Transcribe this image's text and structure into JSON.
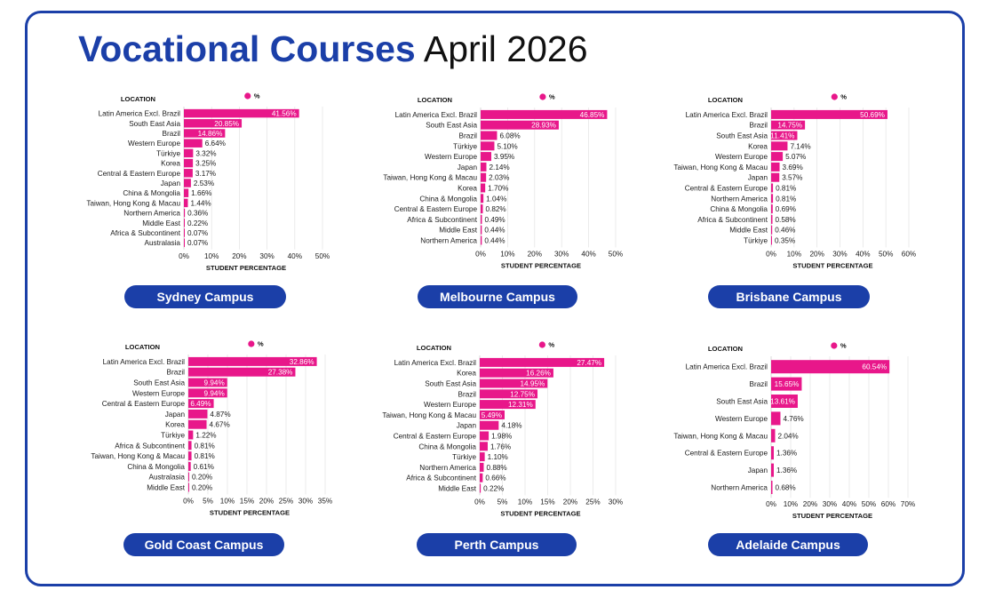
{
  "page": {
    "title_bold": "Vocational Courses",
    "title_rest": "April 2026",
    "colors": {
      "accent": "#1b3fa8",
      "bar": "#e8178a",
      "text": "#1a1a1a"
    }
  },
  "chart_data": [
    {
      "type": "bar",
      "orientation": "horizontal",
      "campus": "Sydney Campus",
      "ylabel": "LOCATION",
      "xlabel": "STUDENT PERCENTAGE",
      "legend": "%",
      "legend_position": "top",
      "xlim": [
        0,
        50
      ],
      "xticks": [
        "0%",
        "10%",
        "20%",
        "30%",
        "40%",
        "50%"
      ],
      "categories": [
        "Latin America Excl. Brazil",
        "South East Asia",
        "Brazil",
        "Western Europe",
        "Türkiye",
        "Korea",
        "Central & Eastern Europe",
        "Japan",
        "China & Mongolia",
        "Taiwan, Hong Kong & Macau",
        "Northern America",
        "Middle East",
        "Africa & Subcontinent",
        "Australasia"
      ],
      "values": [
        41.56,
        20.85,
        14.86,
        6.64,
        3.32,
        3.25,
        3.17,
        2.53,
        1.66,
        1.44,
        0.36,
        0.22,
        0.07,
        0.07
      ],
      "labels": [
        "41.56%",
        "20.85%",
        "14.86%",
        "6.64%",
        "3.32%",
        "3.25%",
        "3.17%",
        "2.53%",
        "1.66%",
        "1.44%",
        "0.36%",
        "0.22%",
        "0.07%",
        "0.07%"
      ]
    },
    {
      "type": "bar",
      "orientation": "horizontal",
      "campus": "Melbourne Campus",
      "ylabel": "LOCATION",
      "xlabel": "STUDENT PERCENTAGE",
      "legend": "%",
      "legend_position": "top",
      "xlim": [
        0,
        50
      ],
      "xticks": [
        "0%",
        "10%",
        "20%",
        "30%",
        "40%",
        "50%"
      ],
      "categories": [
        "Latin America Excl. Brazil",
        "South East Asia",
        "Brazil",
        "Türkiye",
        "Western Europe",
        "Japan",
        "Taiwan, Hong Kong & Macau",
        "Korea",
        "China & Mongolia",
        "Central & Eastern Europe",
        "Africa & Subcontinent",
        "Middle East",
        "Northern America"
      ],
      "values": [
        46.85,
        28.93,
        6.08,
        5.1,
        3.95,
        2.14,
        2.03,
        1.7,
        1.04,
        0.82,
        0.49,
        0.44,
        0.44
      ],
      "labels": [
        "46.85%",
        "28.93%",
        "6.08%",
        "5.10%",
        "3.95%",
        "2.14%",
        "2.03%",
        "1.70%",
        "1.04%",
        "0.82%",
        "0.49%",
        "0.44%",
        "0.44%"
      ]
    },
    {
      "type": "bar",
      "orientation": "horizontal",
      "campus": "Brisbane Campus",
      "ylabel": "LOCATION",
      "xlabel": "STUDENT PERCENTAGE",
      "legend": "%",
      "legend_position": "top",
      "xlim": [
        0,
        60
      ],
      "xticks": [
        "0%",
        "10%",
        "20%",
        "30%",
        "40%",
        "50%",
        "60%"
      ],
      "categories": [
        "Latin America Excl. Brazil",
        "Brazil",
        "South East Asia",
        "Korea",
        "Western Europe",
        "Taiwan, Hong Kong & Macau",
        "Japan",
        "Central & Eastern Europe",
        "Northern America",
        "China & Mongolia",
        "Africa & Subcontinent",
        "Middle East",
        "Türkiye"
      ],
      "values": [
        50.69,
        14.75,
        11.41,
        7.14,
        5.07,
        3.69,
        3.57,
        0.81,
        0.81,
        0.69,
        0.58,
        0.46,
        0.35
      ],
      "labels": [
        "50.69%",
        "14.75%",
        "11.41%",
        "7.14%",
        "5.07%",
        "3.69%",
        "3.57%",
        "0.81%",
        "0.81%",
        "0.69%",
        "0.58%",
        "0.46%",
        "0.35%"
      ]
    },
    {
      "type": "bar",
      "orientation": "horizontal",
      "campus": "Gold Coast Campus",
      "ylabel": "LOCATION",
      "xlabel": "STUDENT PERCENTAGE",
      "legend": "%",
      "legend_position": "top",
      "xlim": [
        0,
        35
      ],
      "xticks": [
        "0%",
        "5%",
        "10%",
        "15%",
        "20%",
        "25%",
        "30%",
        "35%"
      ],
      "categories": [
        "Latin America Excl. Brazil",
        "Brazil",
        "South East Asia",
        "Western Europe",
        "Central & Eastern Europe",
        "Japan",
        "Korea",
        "Türkiye",
        "Africa & Subcontinent",
        "Taiwan, Hong Kong & Macau",
        "China & Mongolia",
        "Australasia",
        "Middle East"
      ],
      "values": [
        32.86,
        27.38,
        9.94,
        9.94,
        6.49,
        4.87,
        4.67,
        1.22,
        0.81,
        0.81,
        0.61,
        0.2,
        0.2
      ],
      "labels": [
        "32.86%",
        "27.38%",
        "9.94%",
        "9.94%",
        "6.49%",
        "4.87%",
        "4.67%",
        "1.22%",
        "0.81%",
        "0.81%",
        "0.61%",
        "0.20%",
        "0.20%"
      ]
    },
    {
      "type": "bar",
      "orientation": "horizontal",
      "campus": "Perth Campus",
      "ylabel": "LOCATION",
      "xlabel": "STUDENT PERCENTAGE",
      "legend": "%",
      "legend_position": "top",
      "xlim": [
        0,
        30
      ],
      "xticks": [
        "0%",
        "5%",
        "10%",
        "15%",
        "20%",
        "25%",
        "30%"
      ],
      "categories": [
        "Latin America Excl. Brazil",
        "Korea",
        "South East Asia",
        "Brazil",
        "Western Europe",
        "Taiwan, Hong Kong & Macau",
        "Japan",
        "Central & Eastern Europe",
        "China & Mongolia",
        "Türkiye",
        "Northern America",
        "Africa & Subcontinent",
        "Middle East"
      ],
      "values": [
        27.47,
        16.26,
        14.95,
        12.75,
        12.31,
        5.49,
        4.18,
        1.98,
        1.76,
        1.1,
        0.88,
        0.66,
        0.22
      ],
      "labels": [
        "27.47%",
        "16.26%",
        "14.95%",
        "12.75%",
        "12.31%",
        "5.49%",
        "4.18%",
        "1.98%",
        "1.76%",
        "1.10%",
        "0.88%",
        "0.66%",
        "0.22%"
      ]
    },
    {
      "type": "bar",
      "orientation": "horizontal",
      "campus": "Adelaide Campus",
      "ylabel": "LOCATION",
      "xlabel": "STUDENT PERCENTAGE",
      "legend": "%",
      "legend_position": "top",
      "xlim": [
        0,
        70
      ],
      "xticks": [
        "0%",
        "10%",
        "20%",
        "30%",
        "40%",
        "50%",
        "60%",
        "70%"
      ],
      "categories": [
        "Latin America Excl. Brazil",
        "Brazil",
        "South East Asia",
        "Western Europe",
        "Taiwan, Hong Kong & Macau",
        "Central & Eastern Europe",
        "Japan",
        "Northern America"
      ],
      "values": [
        60.54,
        15.65,
        13.61,
        4.76,
        2.04,
        1.36,
        1.36,
        0.68
      ],
      "labels": [
        "60.54%",
        "15.65%",
        "13.61%",
        "4.76%",
        "2.04%",
        "1.36%",
        "1.36%",
        "0.68%"
      ]
    }
  ]
}
